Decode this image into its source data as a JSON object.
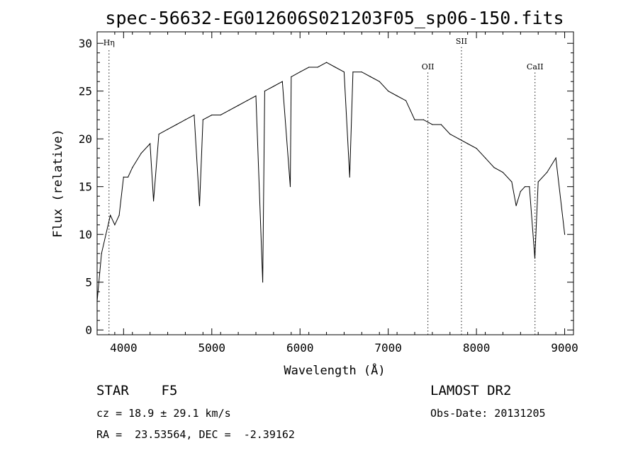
{
  "chart_data": {
    "type": "line",
    "title": "spec-56632-EG012606S021203F05_sp06-150.fits",
    "xlabel": "Wavelength (Å)",
    "ylabel": "Flux (relative)",
    "xlim": [
      3700,
      9100
    ],
    "ylim": [
      -0.5,
      31.2
    ],
    "xticks": [
      4000,
      5000,
      6000,
      7000,
      8000,
      9000
    ],
    "yticks": [
      0,
      5,
      10,
      15,
      20,
      25,
      30
    ],
    "grid": false,
    "series": [
      {
        "x": [
          3700,
          3750,
          3800,
          3850,
          3900,
          3950,
          4000,
          4050,
          4100,
          4200,
          4300,
          4340,
          4400,
          4500,
          4600,
          4700,
          4800,
          4861,
          4900,
          5000,
          5100,
          5200,
          5300,
          5400,
          5500,
          5577,
          5600,
          5700,
          5800,
          5890,
          5900,
          6000,
          6100,
          6200,
          6300,
          6400,
          6500,
          6563,
          6600,
          6700,
          6800,
          6900,
          7000,
          7100,
          7200,
          7300,
          7400,
          7500,
          7600,
          7700,
          7800,
          7900,
          8000,
          8100,
          8200,
          8300,
          8400,
          8450,
          8500,
          8550,
          8600,
          8662,
          8700,
          8800,
          8900,
          9000
        ],
        "y": [
          3,
          8,
          10,
          12,
          11,
          12,
          16,
          16,
          17,
          18.5,
          19.5,
          13.5,
          20.5,
          21,
          21.5,
          22,
          22.5,
          13,
          22,
          22.5,
          22.5,
          23,
          23.5,
          24,
          24.5,
          5,
          25,
          25.5,
          26,
          15,
          26.5,
          27,
          27.5,
          27.5,
          28,
          27.5,
          27,
          16,
          27,
          27,
          26.5,
          26,
          25,
          24.5,
          24,
          22,
          22,
          21.5,
          21.5,
          20.5,
          20,
          19.5,
          19,
          18,
          17,
          16.5,
          15.5,
          13,
          14.5,
          15,
          15,
          7.5,
          15.5,
          16.5,
          18,
          10
        ]
      }
    ],
    "annotations": [
      {
        "label": "Hη",
        "x": 3835,
        "ypos": 0.965
      },
      {
        "label": "OII",
        "x": 7450,
        "ypos": 0.885
      },
      {
        "label": "SII",
        "x": 7830,
        "ypos": 0.97
      },
      {
        "label": "CaII",
        "x": 8664,
        "ypos": 0.885
      }
    ]
  },
  "info": {
    "class_line": "STAR    F5",
    "survey": "LAMOST DR2",
    "cz_line": "cz = 18.9 ± 29.1 km/s",
    "obs_date": "Obs-Date: 20131205",
    "coord_line": "RA =  23.53564, DEC =  -2.39162"
  }
}
